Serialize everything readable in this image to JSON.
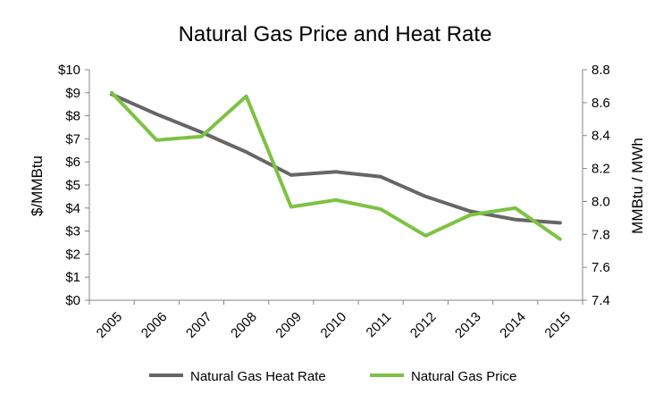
{
  "chart_data": {
    "type": "line",
    "title": "Natural Gas Price and Heat Rate",
    "xlabel": "",
    "ylabel": "$/MMBtu",
    "y2label": "MMBtu / MWh",
    "categories": [
      "2005",
      "2006",
      "2007",
      "2008",
      "2009",
      "2010",
      "2011",
      "2012",
      "2013",
      "2014",
      "2015"
    ],
    "ylim": [
      0,
      10
    ],
    "y_ticks": [
      0,
      1,
      2,
      3,
      4,
      5,
      6,
      7,
      8,
      9,
      10
    ],
    "y_tick_labels": [
      "$0",
      "$1",
      "$2",
      "$3",
      "$4",
      "$5",
      "$6",
      "$7",
      "$8",
      "$9",
      "$10"
    ],
    "y2lim": [
      7.4,
      8.8
    ],
    "y2_ticks": [
      7.4,
      7.6,
      7.8,
      8.0,
      8.2,
      8.4,
      8.6,
      8.8
    ],
    "y2_tick_labels": [
      "7.4",
      "7.6",
      "7.8",
      "8.0",
      "8.2",
      "8.4",
      "8.6",
      "8.8"
    ],
    "grid": false,
    "legend_position": "bottom",
    "series": [
      {
        "name": "Natural Gas Heat Rate",
        "axis": "right",
        "color": "#666666",
        "values": [
          8.65,
          8.53,
          8.42,
          8.3,
          8.16,
          8.18,
          8.15,
          8.03,
          7.94,
          7.89,
          7.87
        ]
      },
      {
        "name": "Natural Gas Price",
        "axis": "left",
        "color": "#7dc242",
        "values": [
          9.0,
          6.95,
          7.1,
          8.85,
          4.05,
          4.35,
          3.95,
          2.8,
          3.7,
          4.0,
          2.65
        ]
      }
    ]
  }
}
